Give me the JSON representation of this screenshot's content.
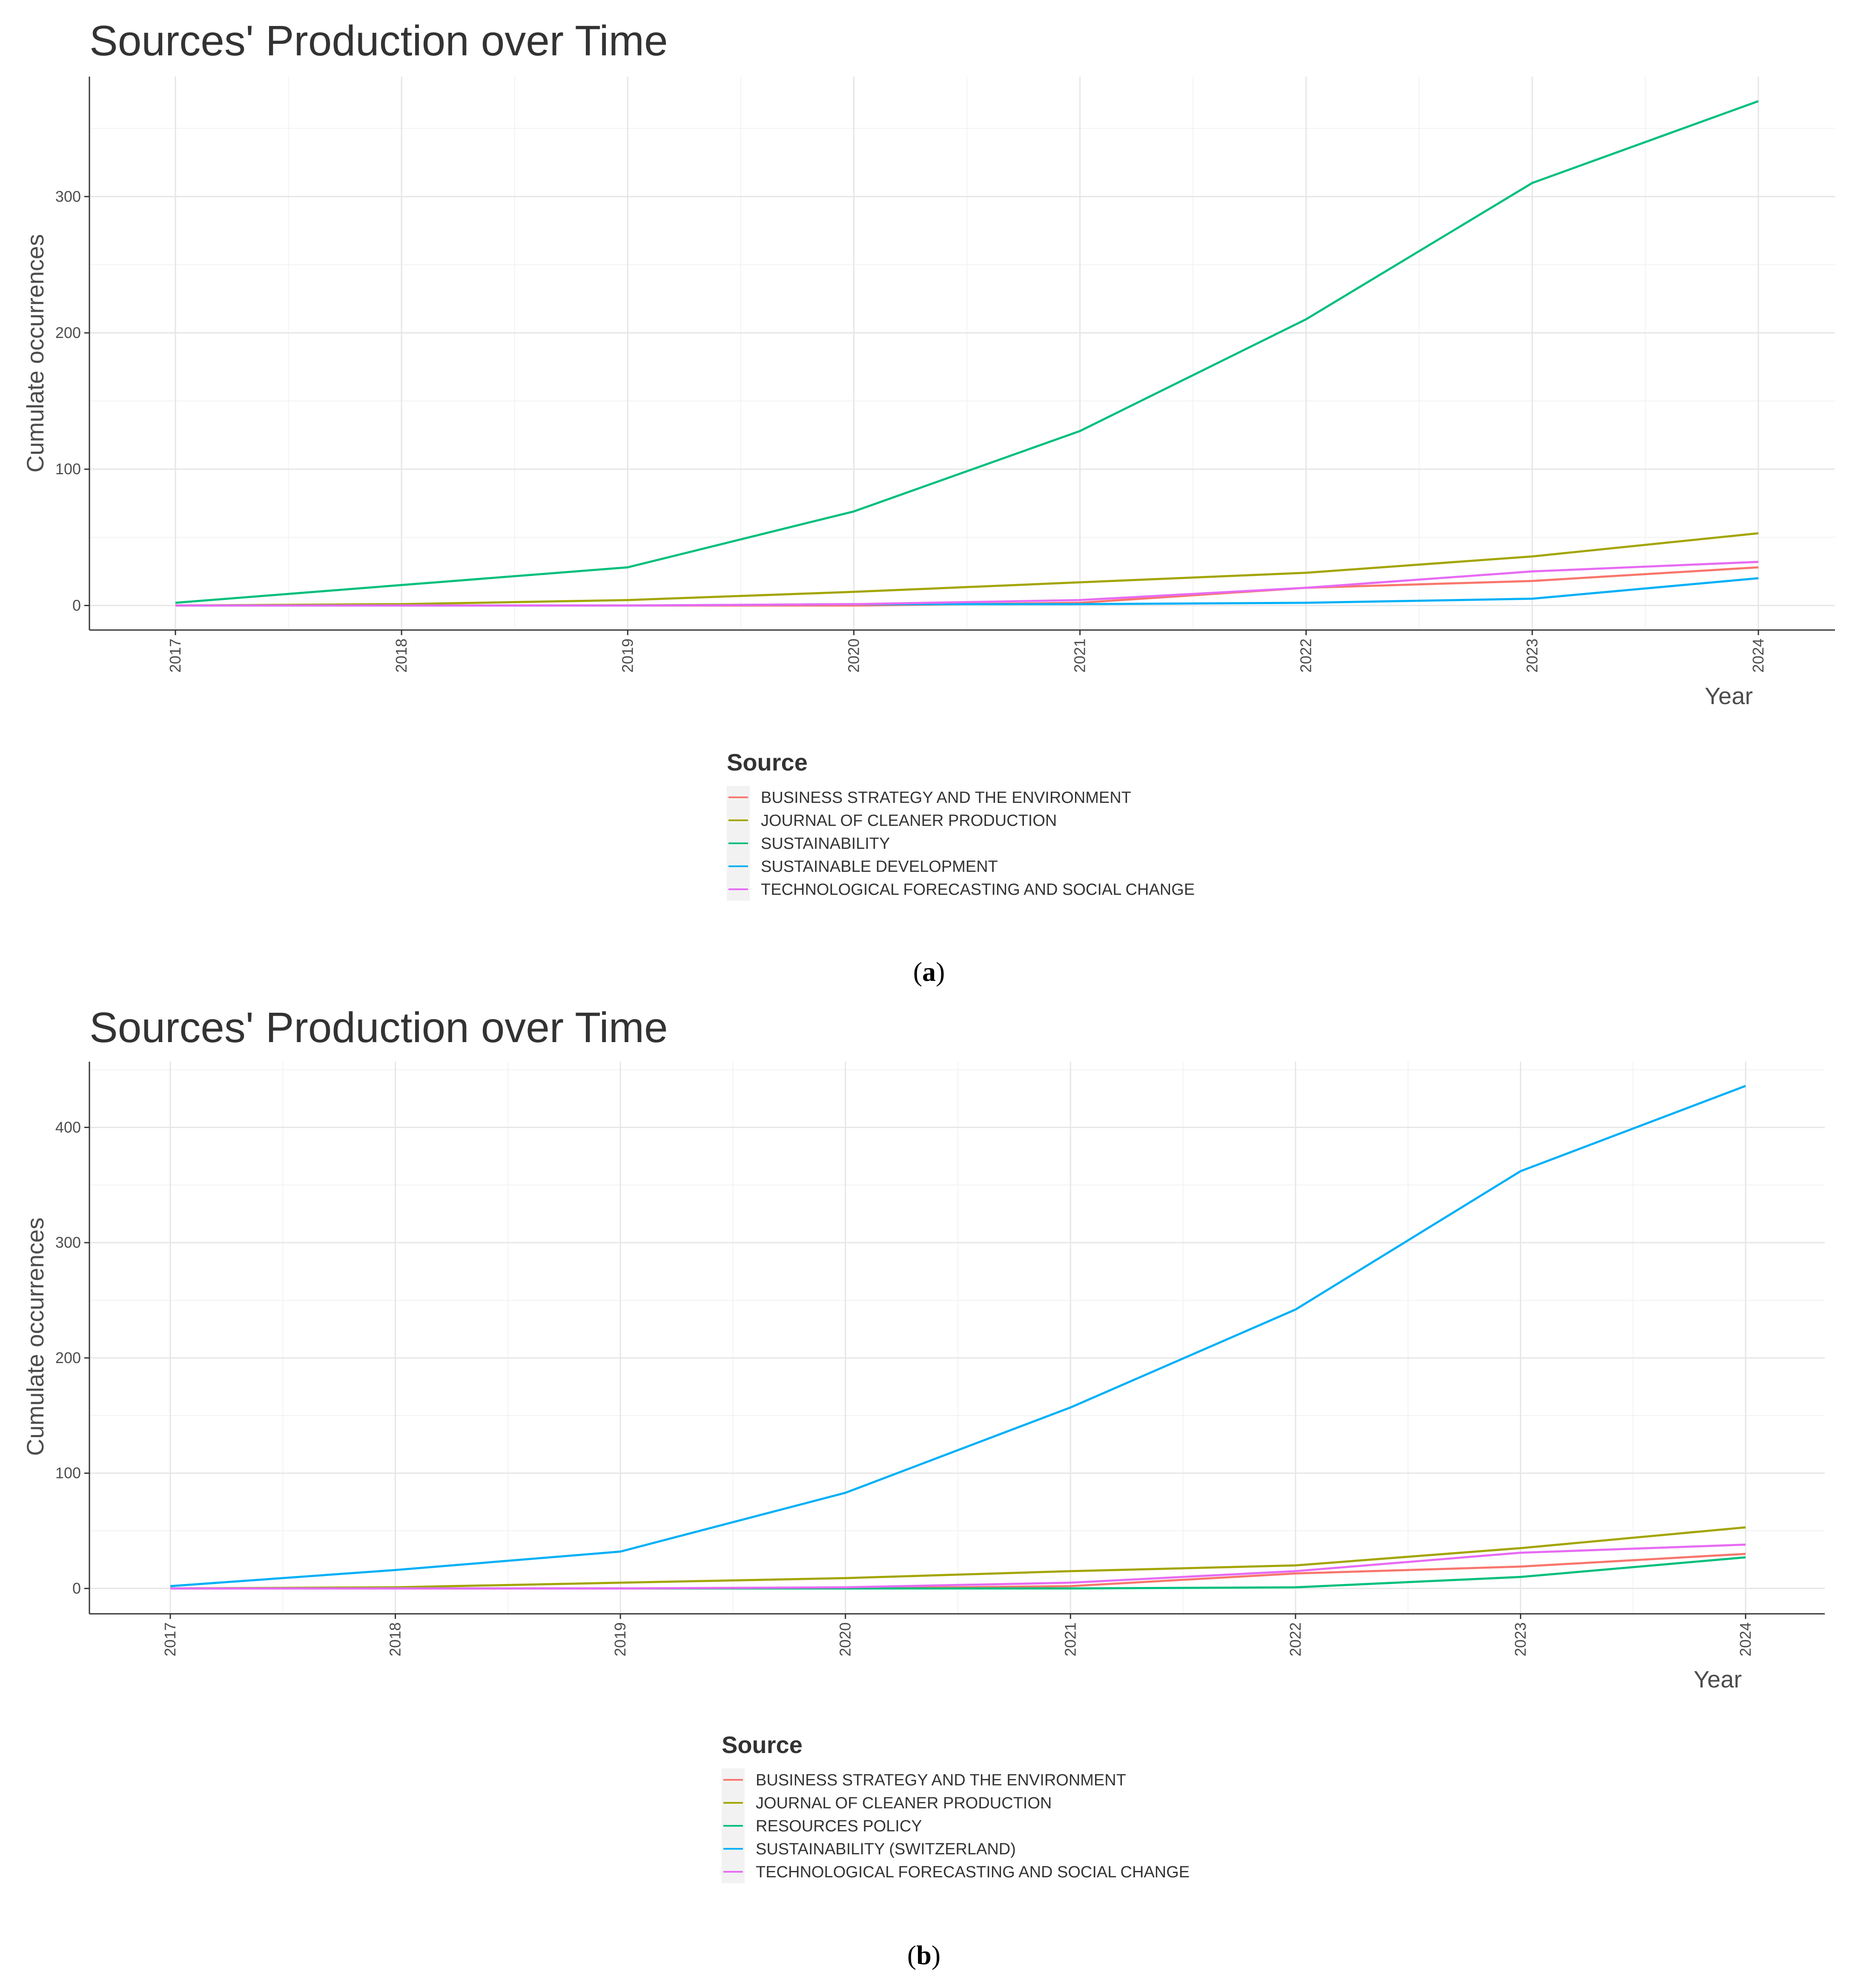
{
  "chart_data": [
    {
      "type": "line",
      "title": "Sources' Production over Time",
      "xlabel": "Year",
      "ylabel": "Cumulate occurrences",
      "ylim": [
        -18,
        388
      ],
      "yticks": [
        0,
        100,
        200,
        300
      ],
      "categories": [
        "2017",
        "2018",
        "2019",
        "2020",
        "2021",
        "2022",
        "2023",
        "2024"
      ],
      "grid": true,
      "legend_position": "bottom",
      "legend_title": "Source",
      "caption": "(a)",
      "caption_letter": "a",
      "series": [
        {
          "name": "BUSINESS STRATEGY AND THE ENVIRONMENT",
          "color": "#F8766D",
          "values": [
            0,
            0,
            0,
            0,
            2,
            13,
            18,
            28
          ]
        },
        {
          "name": "JOURNAL OF CLEANER PRODUCTION",
          "color": "#A3A500",
          "values": [
            0,
            1,
            4,
            10,
            17,
            24,
            36,
            53
          ]
        },
        {
          "name": "SUSTAINABILITY",
          "color": "#00BF7D",
          "values": [
            2,
            15,
            28,
            69,
            128,
            210,
            310,
            370
          ]
        },
        {
          "name": "SUSTAINABLE DEVELOPMENT",
          "color": "#00B0F6",
          "values": [
            0,
            0,
            0,
            1,
            1,
            2,
            5,
            20
          ]
        },
        {
          "name": "TECHNOLOGICAL FORECASTING AND SOCIAL CHANGE",
          "color": "#E76BF3",
          "values": [
            0,
            0,
            0,
            1,
            4,
            13,
            25,
            32
          ]
        }
      ]
    },
    {
      "type": "line",
      "title": "Sources' Production over Time",
      "xlabel": "Year",
      "ylabel": "Cumulate occurrences",
      "ylim": [
        -22,
        457
      ],
      "yticks": [
        0,
        100,
        200,
        300,
        400
      ],
      "categories": [
        "2017",
        "2018",
        "2019",
        "2020",
        "2021",
        "2022",
        "2023",
        "2024"
      ],
      "grid": true,
      "legend_position": "bottom",
      "legend_title": "Source",
      "caption": "(b)",
      "caption_letter": "b",
      "series": [
        {
          "name": "BUSINESS STRATEGY AND THE ENVIRONMENT",
          "color": "#F8766D",
          "values": [
            0,
            0,
            0,
            0,
            2,
            13,
            19,
            30
          ]
        },
        {
          "name": "JOURNAL OF CLEANER PRODUCTION",
          "color": "#A3A500",
          "values": [
            0,
            1,
            5,
            9,
            15,
            20,
            35,
            53
          ]
        },
        {
          "name": "RESOURCES POLICY",
          "color": "#00BF7D",
          "values": [
            0,
            0,
            0,
            0,
            0,
            1,
            10,
            27
          ]
        },
        {
          "name": "SUSTAINABILITY (SWITZERLAND)",
          "color": "#00B0F6",
          "values": [
            2,
            16,
            32,
            83,
            157,
            242,
            362,
            436
          ]
        },
        {
          "name": "TECHNOLOGICAL FORECASTING AND SOCIAL CHANGE",
          "color": "#E76BF3",
          "values": [
            0,
            0,
            0,
            1,
            5,
            15,
            31,
            38
          ]
        }
      ]
    }
  ]
}
